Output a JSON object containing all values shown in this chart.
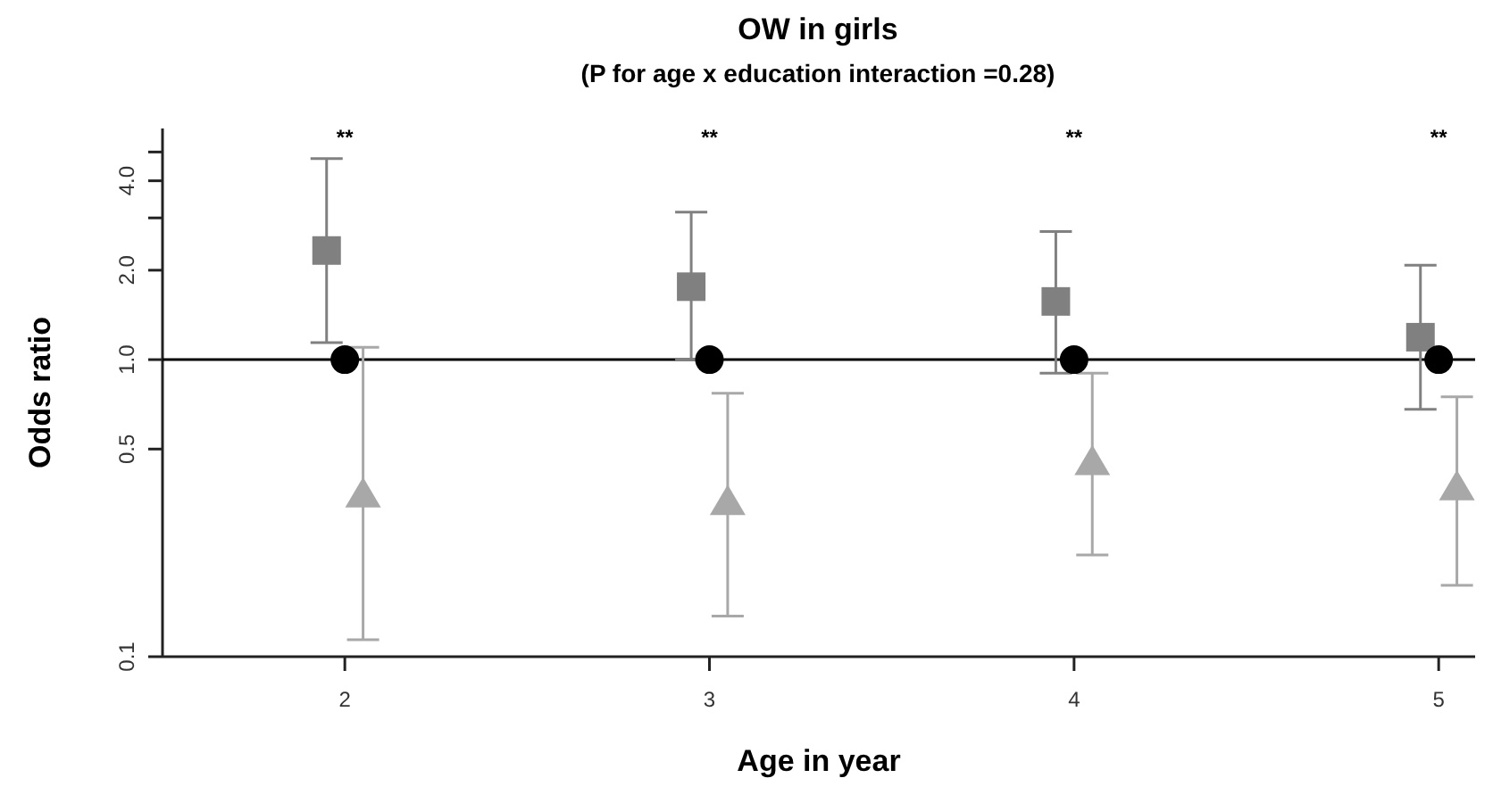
{
  "chart_data": {
    "type": "scatter",
    "title": "OW in girls",
    "subtitle": "(P for age x education interaction =0.28)",
    "xlabel": "Age in year",
    "ylabel": "Odds ratio",
    "log": "y",
    "xlim": [
      1.5,
      5.1
    ],
    "xticks": [
      2,
      3,
      4,
      5
    ],
    "ylim": [
      0.1,
      6
    ],
    "yticks": [
      0.1,
      0.5,
      {
        "value": 1,
        "label": "1.0"
      },
      {
        "value": 2,
        "label": "2.0"
      },
      {
        "value": 3,
        "label": null
      },
      {
        "value": 4,
        "label": "4.0"
      },
      {
        "value": 5,
        "label": null
      }
    ],
    "series": [
      {
        "color": "#808080",
        "marker": "square",
        "x": [
          1.95,
          2.95,
          3.95,
          4.95
        ],
        "values": [
          2.33,
          1.76,
          1.57,
          1.19
        ],
        "errors": [
          [
            1.14,
            4.75
          ],
          [
            1.0,
            3.14
          ],
          [
            0.9,
            2.7
          ],
          [
            0.68,
            2.08
          ]
        ]
      },
      {
        "color": "#a8a8a8",
        "marker": "triangle",
        "x": [
          2.05,
          3.05,
          4.05,
          5.05
        ],
        "values": [
          0.35,
          0.33,
          0.45,
          0.37
        ],
        "errors": [
          [
            0.114,
            1.1
          ],
          [
            0.137,
            0.77
          ],
          [
            0.22,
            0.9
          ],
          [
            0.174,
            0.75
          ]
        ]
      },
      {
        "color": "#000000",
        "marker": "circle",
        "x": [
          2,
          3,
          4,
          5
        ],
        "values": [
          1,
          1,
          1,
          1
        ]
      }
    ],
    "ref_lines": [
      {
        "axis": "y",
        "value": 1,
        "color": "#000000"
      }
    ],
    "annotations": [
      "**",
      "**",
      "**",
      "**"
    ]
  }
}
